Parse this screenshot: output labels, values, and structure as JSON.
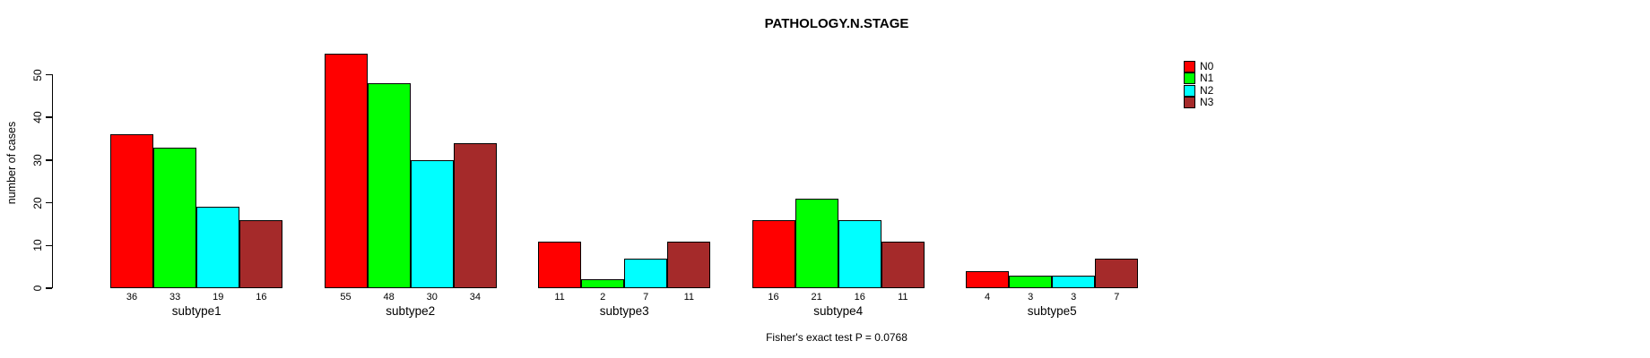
{
  "chart_data": {
    "type": "bar",
    "grouped": true,
    "title": "PATHOLOGY.N.STAGE",
    "xlabel": "",
    "ylabel": "number of cases",
    "ylim": [
      0,
      55
    ],
    "yticks": [
      0,
      10,
      20,
      30,
      40,
      50
    ],
    "grid": false,
    "legend_position": "top-right",
    "bar_borders": "#000000",
    "value_labels_shown": true,
    "categories": [
      "subtype1",
      "subtype2",
      "subtype3",
      "subtype4",
      "subtype5"
    ],
    "series": [
      {
        "name": "N0",
        "color": "#FF0000",
        "values": [
          36,
          55,
          11,
          16,
          4
        ]
      },
      {
        "name": "N1",
        "color": "#00FF00",
        "values": [
          33,
          48,
          2,
          21,
          3
        ]
      },
      {
        "name": "N2",
        "color": "#00FFFF",
        "values": [
          19,
          30,
          7,
          16,
          3
        ]
      },
      {
        "name": "N3",
        "color": "#A52A2A",
        "values": [
          16,
          34,
          11,
          11,
          7
        ]
      }
    ],
    "annotation": "Fisher's exact test P = 0.0768"
  }
}
